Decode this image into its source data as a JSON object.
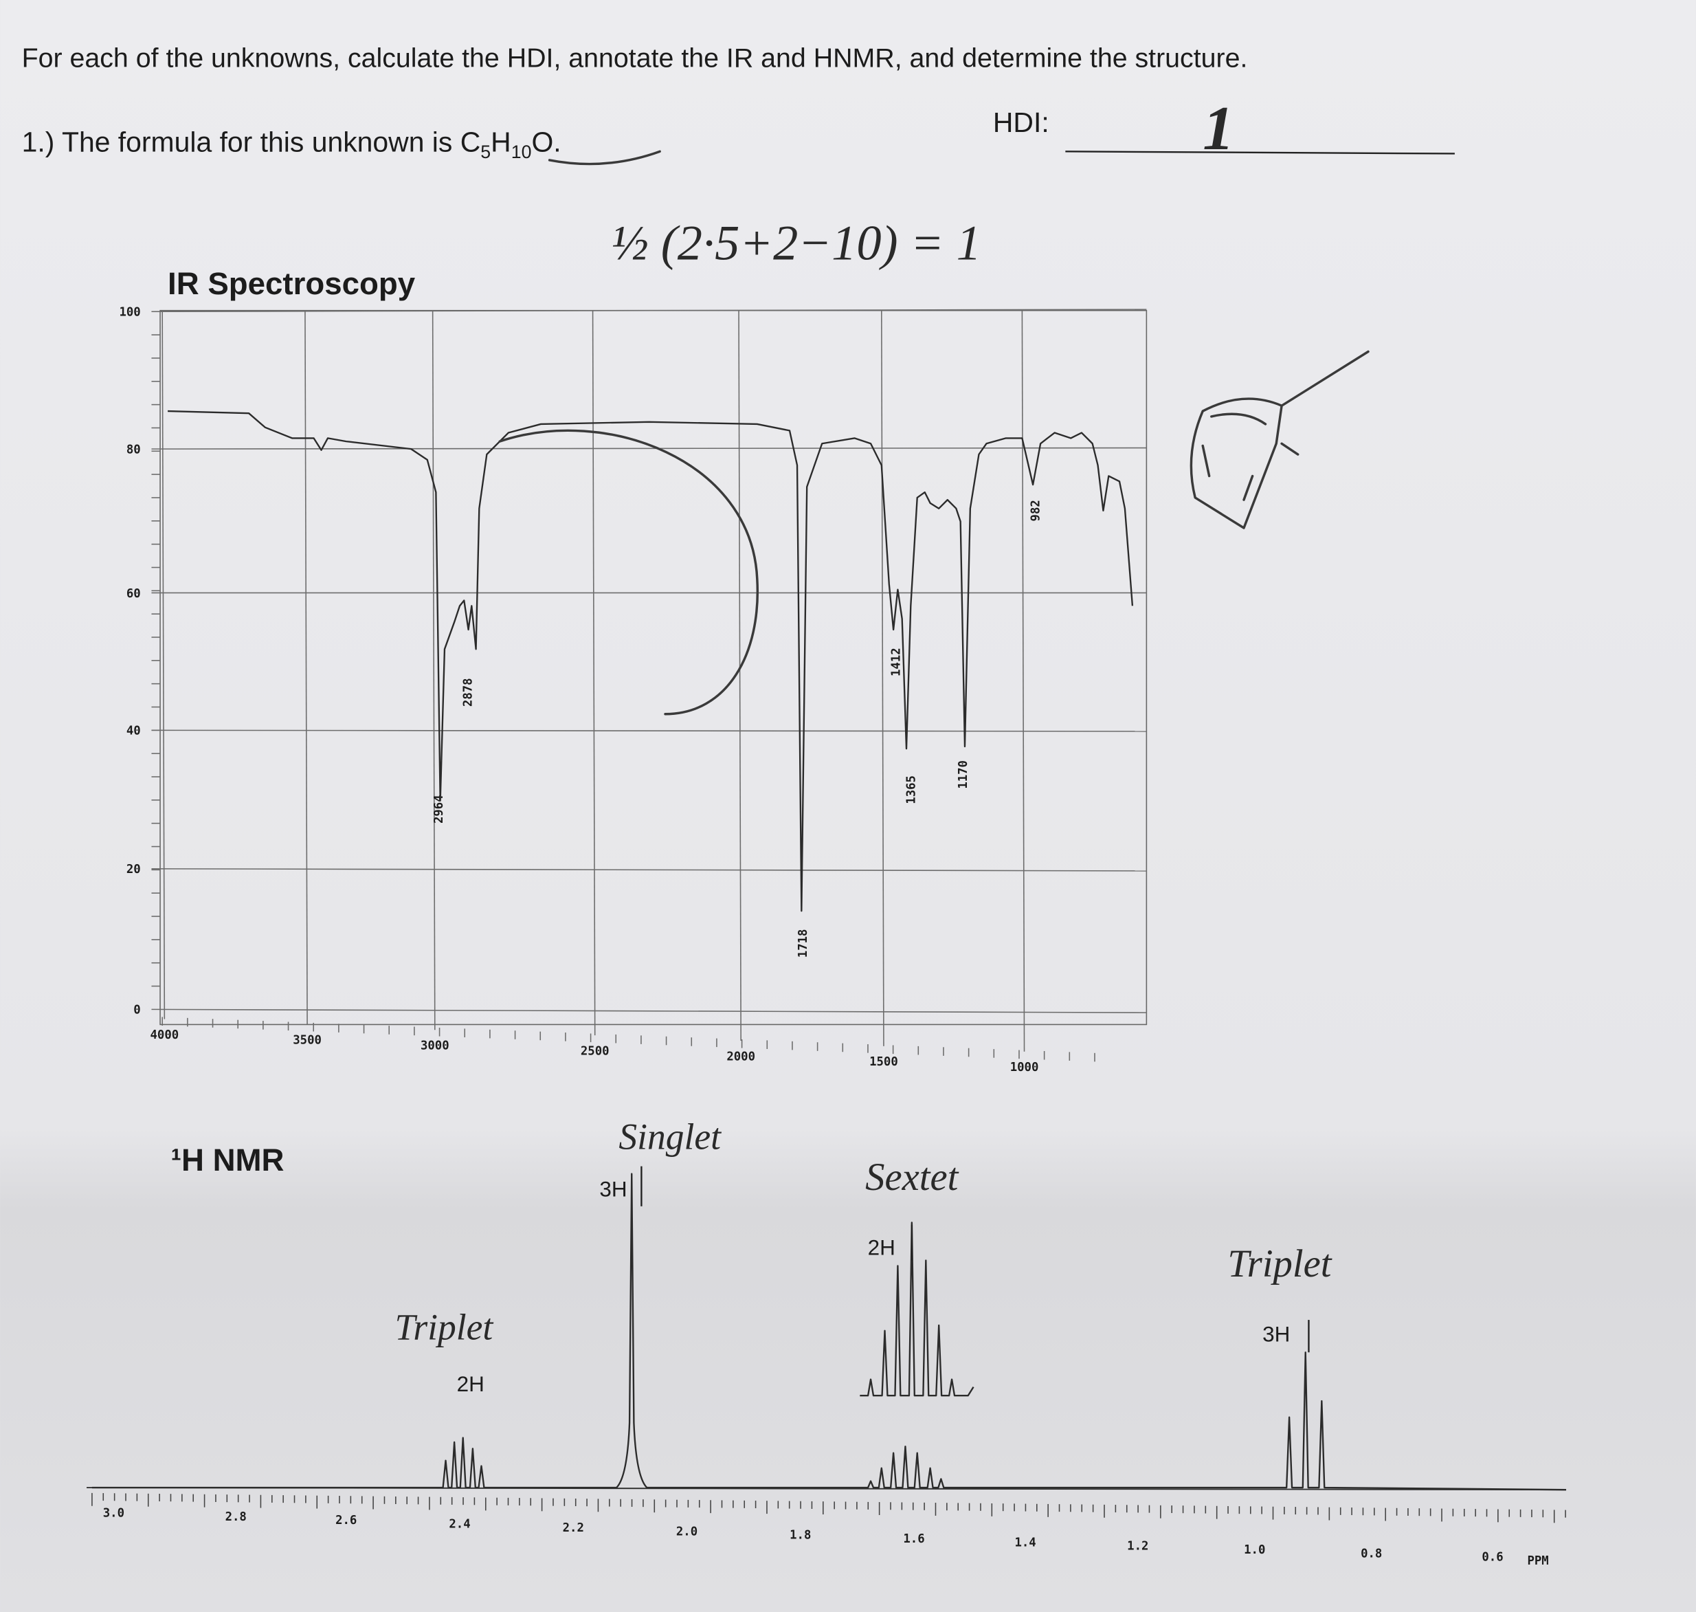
{
  "header": {
    "instructions": "For each of the unknowns, calculate the HDI, annotate the IR and HNMR, and determine the structure.",
    "problem": "1.) The formula for this unknown is ",
    "formula": [
      "C",
      "5",
      "H",
      "10",
      "O."
    ],
    "hdi_label": "HDI:"
  },
  "handwriting": {
    "hdi_answer": "1",
    "hdi_calc": "½ (2·5+2−10) = 1",
    "singlet": "Singlet",
    "sextet": "Sextet",
    "triplet_left": "Triplet",
    "triplet_right": "Triplet"
  },
  "ir": {
    "title": "IR Spectroscopy",
    "yticks": [
      "100",
      "80",
      "60",
      "40",
      "20",
      "0"
    ],
    "xticks": [
      "4000",
      "3500",
      "3000",
      "2500",
      "2000",
      "1500",
      "1000"
    ],
    "peaks": [
      "2964",
      "2878",
      "1718",
      "1412",
      "1365",
      "1170",
      "982"
    ]
  },
  "nmr": {
    "title": "¹H NMR",
    "xticks": [
      "3.0",
      "2.8",
      "2.6",
      "2.4",
      "2.2",
      "2.0",
      "1.8",
      "1.6",
      "1.4",
      "1.2",
      "1.0",
      "0.8",
      "0.6"
    ],
    "unit": "PPM",
    "integrals": [
      "3H",
      "2H",
      "2H",
      "3H"
    ]
  }
}
